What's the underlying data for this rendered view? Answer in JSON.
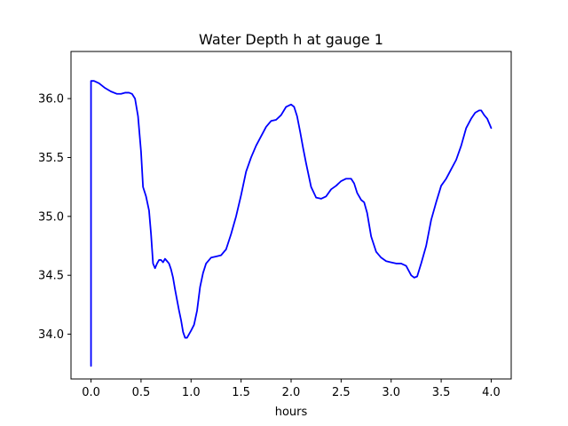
{
  "chart_data": {
    "type": "line",
    "title": "Water Depth h at gauge 1",
    "xlabel": "hours",
    "ylabel": "",
    "xlim": [
      -0.2,
      4.2
    ],
    "ylim": [
      33.62,
      36.4
    ],
    "grid": false,
    "xticks": [
      0.0,
      0.5,
      1.0,
      1.5,
      2.0,
      2.5,
      3.0,
      3.5,
      4.0
    ],
    "xtick_labels": [
      "0.0",
      "0.5",
      "1.0",
      "1.5",
      "2.0",
      "2.5",
      "3.0",
      "3.5",
      "4.0"
    ],
    "yticks": [
      34.0,
      34.5,
      35.0,
      35.5,
      36.0
    ],
    "ytick_labels": [
      "34.0",
      "34.5",
      "35.0",
      "35.5",
      "36.0"
    ],
    "series": [
      {
        "color": "#0000ff",
        "x": [
          0.0,
          0.0,
          0.03,
          0.08,
          0.14,
          0.2,
          0.26,
          0.3,
          0.34,
          0.38,
          0.41,
          0.44,
          0.47,
          0.5,
          0.52,
          0.55,
          0.58,
          0.6,
          0.62,
          0.64,
          0.66,
          0.68,
          0.7,
          0.72,
          0.74,
          0.76,
          0.78,
          0.8,
          0.82,
          0.84,
          0.86,
          0.88,
          0.9,
          0.92,
          0.94,
          0.96,
          0.98,
          1.0,
          1.03,
          1.06,
          1.09,
          1.12,
          1.15,
          1.2,
          1.25,
          1.3,
          1.35,
          1.4,
          1.45,
          1.5,
          1.55,
          1.6,
          1.65,
          1.7,
          1.75,
          1.8,
          1.85,
          1.9,
          1.95,
          2.0,
          2.03,
          2.06,
          2.09,
          2.12,
          2.15,
          2.2,
          2.25,
          2.3,
          2.35,
          2.4,
          2.45,
          2.5,
          2.55,
          2.6,
          2.63,
          2.66,
          2.7,
          2.73,
          2.76,
          2.8,
          2.85,
          2.9,
          2.95,
          3.0,
          3.05,
          3.1,
          3.15,
          3.2,
          3.23,
          3.26,
          3.3,
          3.35,
          3.4,
          3.45,
          3.5,
          3.55,
          3.6,
          3.65,
          3.7,
          3.75,
          3.8,
          3.84,
          3.88,
          3.9,
          3.93,
          3.96,
          4.0
        ],
        "y": [
          33.73,
          36.15,
          36.15,
          36.13,
          36.09,
          36.06,
          36.04,
          36.04,
          36.05,
          36.05,
          36.04,
          36.0,
          35.85,
          35.55,
          35.25,
          35.17,
          35.05,
          34.85,
          34.6,
          34.56,
          34.6,
          34.63,
          34.63,
          34.61,
          34.64,
          34.62,
          34.6,
          34.55,
          34.48,
          34.38,
          34.29,
          34.2,
          34.12,
          34.02,
          33.97,
          33.97,
          34.0,
          34.03,
          34.08,
          34.2,
          34.4,
          34.52,
          34.6,
          34.65,
          34.66,
          34.67,
          34.72,
          34.85,
          35.0,
          35.18,
          35.38,
          35.5,
          35.6,
          35.68,
          35.76,
          35.81,
          35.82,
          35.86,
          35.93,
          35.95,
          35.93,
          35.85,
          35.72,
          35.58,
          35.45,
          35.25,
          35.16,
          35.15,
          35.17,
          35.23,
          35.26,
          35.3,
          35.32,
          35.32,
          35.28,
          35.2,
          35.14,
          35.12,
          35.03,
          34.83,
          34.7,
          34.65,
          34.62,
          34.61,
          34.6,
          34.6,
          34.58,
          34.5,
          34.48,
          34.49,
          34.6,
          34.75,
          34.97,
          35.12,
          35.26,
          35.32,
          35.4,
          35.48,
          35.6,
          35.75,
          35.83,
          35.88,
          35.9,
          35.9,
          35.86,
          35.83,
          35.75
        ]
      }
    ]
  }
}
